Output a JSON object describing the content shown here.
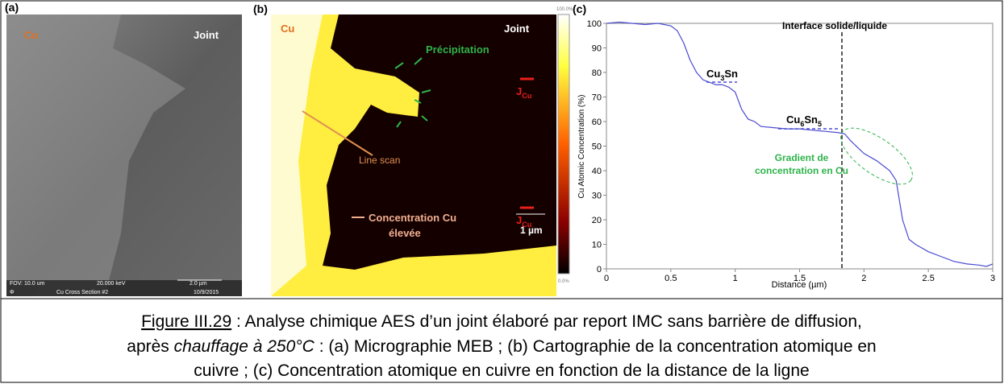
{
  "panel_a": {
    "label": "(a)",
    "cu": "Cu",
    "joint": "Joint",
    "fov": "FOV: 10.0 um",
    "kev": "20.000 keV",
    "scale": "2.0 µm",
    "phi": "Φ",
    "section": "Cu Cross Section #2",
    "date": "10/9/2015"
  },
  "panel_b": {
    "label": "(b)",
    "cu": "Cu",
    "joint": "Joint",
    "precipitation": "Précipitation",
    "j1": "J",
    "j1_sub": "Cu",
    "j2": "J",
    "j2_sub": "Cu",
    "line_scan": "Line scan",
    "conc_1": "Concentration Cu",
    "conc_2": "élevée",
    "scale": "1 µm",
    "cbar_top": "100.0%",
    "cbar_bottom": "0.0%"
  },
  "chart_data": {
    "type": "line",
    "label": "(c)",
    "xlabel": "Distance (µm)",
    "ylabel": "Cu Atomic Concentration (%)",
    "xlim": [
      0,
      3
    ],
    "ylim": [
      0,
      100
    ],
    "xticks": [
      0,
      0.5,
      1,
      1.5,
      2,
      2.5,
      3
    ],
    "yticks": [
      0,
      10,
      20,
      30,
      40,
      50,
      60,
      70,
      80,
      90,
      100
    ],
    "x": [
      0,
      0.1,
      0.2,
      0.3,
      0.4,
      0.5,
      0.55,
      0.6,
      0.65,
      0.7,
      0.75,
      0.8,
      0.85,
      0.9,
      0.95,
      1.0,
      1.05,
      1.1,
      1.15,
      1.2,
      1.3,
      1.4,
      1.5,
      1.6,
      1.7,
      1.8,
      1.85,
      1.9,
      2.0,
      2.1,
      2.2,
      2.25,
      2.3,
      2.35,
      2.4,
      2.5,
      2.6,
      2.7,
      2.8,
      2.9,
      2.95,
      3.0
    ],
    "series": [
      {
        "color": "#4a4ad0",
        "values": [
          100,
          100.5,
          100,
          99.5,
          100,
          99,
          97,
          92,
          85,
          80,
          77,
          76,
          75,
          75,
          74,
          72,
          65,
          61,
          60,
          58,
          57.5,
          57,
          57,
          56.5,
          56,
          55.5,
          55,
          52,
          47,
          44,
          40,
          36,
          20,
          12,
          10,
          7,
          5,
          3,
          2,
          1.5,
          1,
          2
        ]
      }
    ],
    "annotations": {
      "interface": "Interface solide/liquide",
      "cu3sn_a": "Cu",
      "cu3sn_b": "3",
      "cu3sn_c": "Sn",
      "cu6sn5_a": "Cu",
      "cu6sn5_b": "6",
      "cu6sn5_c": "Sn",
      "cu6sn5_d": "5",
      "gradient_1": "Gradient de",
      "gradient_2": "concentration en Cu"
    }
  },
  "caption": {
    "number": "Figure III.29",
    "line1": " : Analyse chimique AES d’un joint élaboré par report IMC sans barrière de diffusion,",
    "line2_a": "après ",
    "line2_b": "chauffage à 250°C",
    "line2_c": " : (a) Micrographie MEB ; (b) Cartographie de la concentration atomique en",
    "line3": "cuivre ; (c) Concentration atomique en cuivre en fonction de la distance de la ligne"
  }
}
